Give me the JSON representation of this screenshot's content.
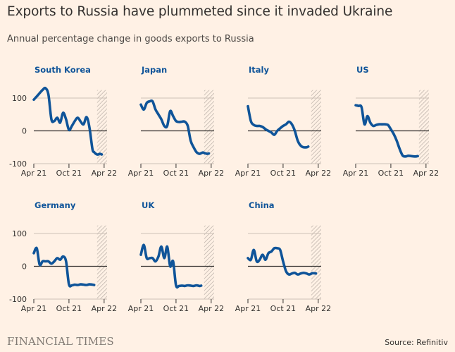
{
  "title": "Exports to Russia have plummeted since it invaded Ukraine",
  "subtitle": "Annual percentage change in goods exports to Russia",
  "source": "Source: Refinitiv",
  "brand": "FINANCIAL TIMES",
  "colors": {
    "background": "#fff1e5",
    "line": "#0f5499",
    "title": "#0f5499",
    "grid": "#ccc1b7",
    "zero": "#33302e",
    "hatch": "#b8aea6"
  },
  "chart_data": {
    "type": "line",
    "x_labels": [
      "Apr 21",
      "Oct 21",
      "Apr 22"
    ],
    "x_tick_months": [
      0,
      6,
      12
    ],
    "x_range_months": [
      0,
      12.5
    ],
    "ylim": [
      -100,
      120
    ],
    "yticks": [
      100,
      0,
      -100
    ],
    "shaded_period_months": [
      10.8,
      12.5
    ],
    "grid": true,
    "panels": [
      {
        "name": "South Korea",
        "x": [
          0,
          0.5,
          1,
          1.5,
          2,
          2.5,
          3,
          3.5,
          4,
          4.5,
          5,
          5.5,
          6,
          6.5,
          7,
          7.5,
          8,
          8.5,
          9,
          9.5,
          10,
          10.3,
          10.6,
          10.8,
          11.0,
          11.3,
          11.6
        ],
        "y": [
          95,
          105,
          115,
          125,
          130,
          110,
          35,
          30,
          40,
          25,
          55,
          35,
          3,
          15,
          30,
          40,
          28,
          20,
          42,
          10,
          -55,
          -65,
          -70,
          -72,
          -72,
          -70,
          -72
        ]
      },
      {
        "name": "Japan",
        "x": [
          0,
          0.5,
          1,
          1.5,
          2,
          2.5,
          3,
          3.5,
          4,
          4.5,
          5,
          5.5,
          6,
          6.5,
          7,
          7.5,
          8,
          8.5,
          9,
          9.5,
          10,
          10.3,
          10.6,
          10.9,
          11.3,
          11.6
        ],
        "y": [
          80,
          65,
          85,
          90,
          90,
          65,
          50,
          35,
          15,
          15,
          60,
          45,
          30,
          27,
          28,
          28,
          15,
          -30,
          -50,
          -65,
          -70,
          -68,
          -66,
          -68,
          -70,
          -69
        ]
      },
      {
        "name": "Italy",
        "x": [
          0,
          0.5,
          1,
          1.5,
          2,
          2.5,
          3,
          3.5,
          4,
          4.5,
          5,
          5.5,
          6,
          6.5,
          7,
          7.5,
          8,
          8.5,
          9,
          9.5,
          10,
          10.3
        ],
        "y": [
          75,
          30,
          18,
          15,
          15,
          12,
          5,
          0,
          -5,
          -12,
          0,
          8,
          15,
          20,
          28,
          20,
          0,
          -30,
          -45,
          -50,
          -50,
          -48
        ]
      },
      {
        "name": "US",
        "x": [
          0,
          0.5,
          1,
          1.5,
          2,
          2.5,
          3,
          3.5,
          4,
          4.5,
          5,
          5.5,
          6,
          6.5,
          7,
          7.5,
          8,
          8.5,
          9,
          9.5,
          10,
          10.3,
          10.6
        ],
        "y": [
          78,
          76,
          72,
          20,
          45,
          25,
          15,
          18,
          20,
          20,
          20,
          18,
          5,
          -10,
          -30,
          -55,
          -75,
          -78,
          -76,
          -77,
          -78,
          -78,
          -77
        ]
      },
      {
        "name": "Germany",
        "x": [
          0,
          0.5,
          1,
          1.5,
          2,
          2.5,
          3,
          3.5,
          4,
          4.5,
          5,
          5.5,
          6,
          6.5,
          7,
          7.5,
          8,
          8.5,
          9,
          9.5,
          10,
          10.3
        ],
        "y": [
          40,
          55,
          5,
          15,
          15,
          15,
          8,
          15,
          25,
          20,
          30,
          15,
          -55,
          -58,
          -56,
          -57,
          -55,
          -56,
          -57,
          -55,
          -56,
          -57
        ]
      },
      {
        "name": "UK",
        "x": [
          0,
          0.5,
          1,
          1.5,
          2,
          2.5,
          3,
          3.5,
          4,
          4.5,
          5,
          5.5,
          6,
          6.5,
          7,
          7.5,
          8,
          8.5,
          9,
          9.5,
          10,
          10.3
        ],
        "y": [
          35,
          65,
          25,
          25,
          25,
          15,
          30,
          60,
          25,
          60,
          0,
          15,
          -58,
          -60,
          -59,
          -60,
          -58,
          -59,
          -60,
          -58,
          -60,
          -59
        ]
      },
      {
        "name": "China",
        "x": [
          0,
          0.5,
          1,
          1.5,
          2,
          2.5,
          3,
          3.5,
          4,
          4.5,
          5,
          5.5,
          6,
          6.5,
          7,
          7.5,
          8,
          8.5,
          9,
          9.5,
          10,
          10.5,
          11,
          11.6
        ],
        "y": [
          25,
          20,
          50,
          15,
          20,
          35,
          20,
          40,
          45,
          55,
          55,
          50,
          15,
          -15,
          -25,
          -22,
          -20,
          -25,
          -22,
          -20,
          -22,
          -25,
          -21,
          -22
        ]
      }
    ]
  }
}
